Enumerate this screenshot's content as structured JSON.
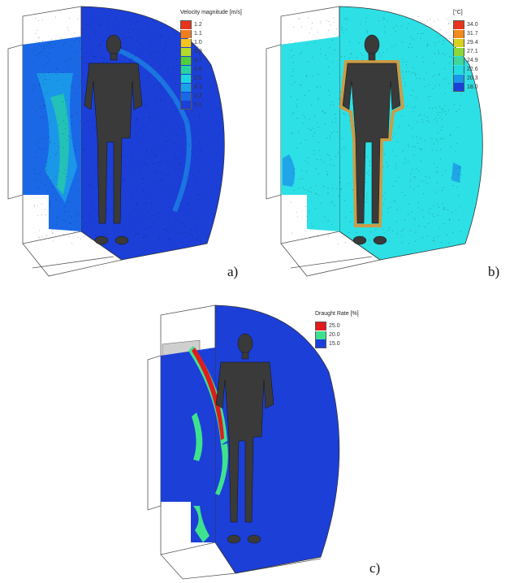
{
  "panels": [
    {
      "id": "a",
      "label": "a)",
      "legend": {
        "title": "Velocity magnitude [m/s]",
        "entries": [
          {
            "value": "1.2",
            "color": "#e8341c"
          },
          {
            "value": "1.1",
            "color": "#f07d1e"
          },
          {
            "value": "1.0",
            "color": "#f4c51f"
          },
          {
            "value": "0.8",
            "color": "#b3dc2a"
          },
          {
            "value": "0.7",
            "color": "#4fcf3b"
          },
          {
            "value": "0.6",
            "color": "#27d3a0"
          },
          {
            "value": "0.5",
            "color": "#1cd6e2"
          },
          {
            "value": "0.3",
            "color": "#1ba2ea"
          },
          {
            "value": "0.2",
            "color": "#1a68e6"
          },
          {
            "value": "0.1",
            "color": "#1c3fd8"
          }
        ]
      }
    },
    {
      "id": "b",
      "label": "b)",
      "legend": {
        "title": "[°C]",
        "entries": [
          {
            "value": "34.0",
            "color": "#e8341c"
          },
          {
            "value": "31.7",
            "color": "#f28b1e"
          },
          {
            "value": "29.4",
            "color": "#d9d11f"
          },
          {
            "value": "27.1",
            "color": "#8cd63a"
          },
          {
            "value": "24.9",
            "color": "#3fd79c"
          },
          {
            "value": "22.6",
            "color": "#22dbe0"
          },
          {
            "value": "20.3",
            "color": "#1b96e8"
          },
          {
            "value": "18.0",
            "color": "#1c3fd8"
          }
        ]
      }
    },
    {
      "id": "c",
      "label": "c)",
      "legend": {
        "title": "Draught Rate [%]",
        "entries": [
          {
            "value": "25.0",
            "color": "#e01b1b"
          },
          {
            "value": "20.0",
            "color": "#3ee28e"
          },
          {
            "value": "15.0",
            "color": "#1c3fd8"
          }
        ]
      }
    }
  ],
  "colors": {
    "room_blue": "#1c3fd8",
    "room_cyan": "#2de0e6",
    "mannequin": "#3a3a3a",
    "outline": "#444444"
  }
}
